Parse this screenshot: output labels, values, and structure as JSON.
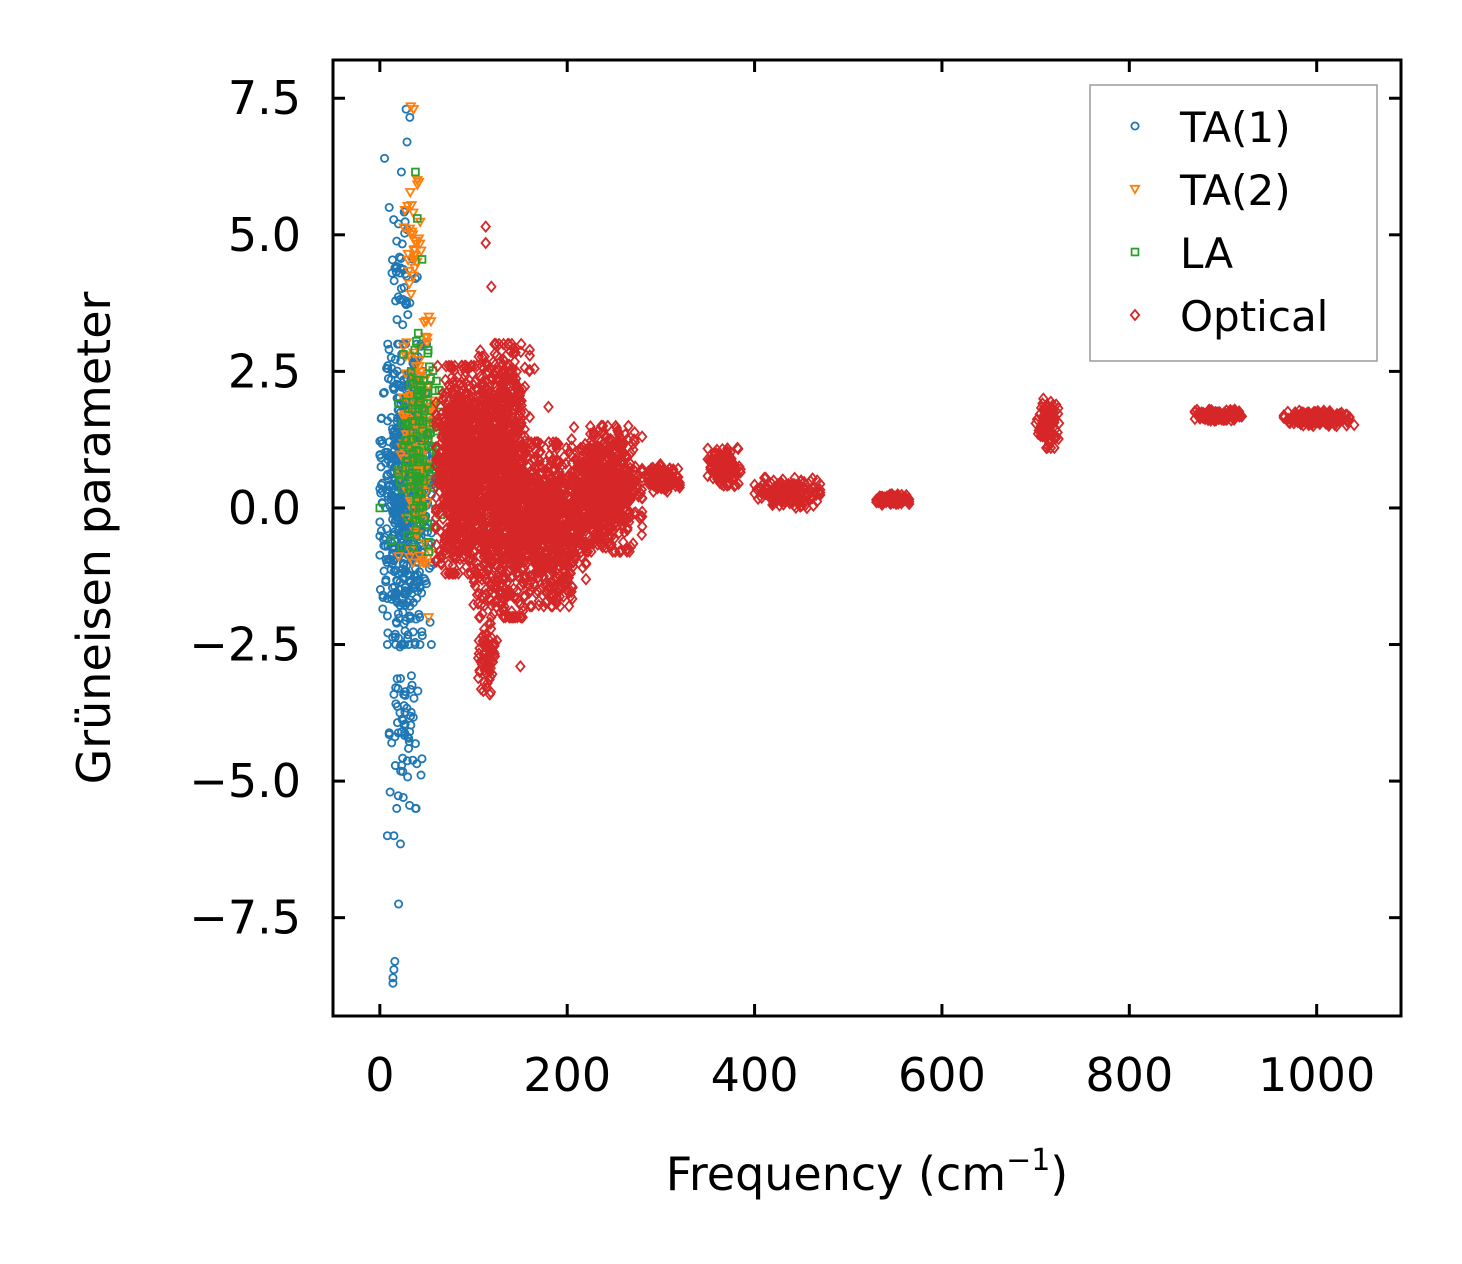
{
  "chart_data": {
    "type": "scatter",
    "title": "",
    "xlabel": "Frequency (cm",
    "xlabel_superscript": "−1",
    "xlabel_suffix": ")",
    "ylabel": "Grüneisen parameter",
    "xlim": [
      -50,
      1090
    ],
    "ylim": [
      -9.3,
      8.2
    ],
    "x_ticks": [
      0,
      200,
      400,
      600,
      800,
      1000
    ],
    "x_tick_labels": [
      "0",
      "200",
      "400",
      "600",
      "800",
      "1000"
    ],
    "y_ticks": [
      7.5,
      5.0,
      2.5,
      0.0,
      -2.5,
      -5.0,
      -7.5
    ],
    "y_tick_labels": [
      "7.5",
      "5.0",
      "2.5",
      "0.0",
      "−2.5",
      "−5.0",
      "−7.5"
    ],
    "grid": false,
    "legend_position": "top-right",
    "series": [
      {
        "name": "TA(1)",
        "marker": "circle",
        "color": "#1f77b4",
        "clusters": [
          {
            "x": [
              0,
              55
            ],
            "y": [
              -2.5,
              3.0
            ],
            "n": 700
          },
          {
            "x": [
              10,
              45
            ],
            "y": [
              -5.5,
              -2.5
            ],
            "n": 60
          },
          {
            "x": [
              10,
              40
            ],
            "y": [
              3.0,
              5.5
            ],
            "n": 40
          }
        ],
        "points": [
          {
            "x": 5,
            "y": 6.4
          },
          {
            "x": 28,
            "y": 7.3
          },
          {
            "x": 32,
            "y": 7.15
          },
          {
            "x": 29,
            "y": 6.7
          },
          {
            "x": 23,
            "y": 6.15
          },
          {
            "x": 27,
            "y": 5.45
          },
          {
            "x": 13,
            "y": 4.3
          },
          {
            "x": 38,
            "y": 4.2
          },
          {
            "x": 8,
            "y": -6.0
          },
          {
            "x": 22,
            "y": -6.15
          },
          {
            "x": 15,
            "y": -6.0
          },
          {
            "x": 20,
            "y": -7.25
          },
          {
            "x": 16,
            "y": -8.3
          },
          {
            "x": 15,
            "y": -8.45
          },
          {
            "x": 14,
            "y": -8.6
          },
          {
            "x": 14,
            "y": -8.7
          },
          {
            "x": 18,
            "y": -5.5
          },
          {
            "x": 25,
            "y": -5.3
          }
        ]
      },
      {
        "name": "TA(2)",
        "marker": "triangle-down",
        "color": "#ff7f0e",
        "clusters": [
          {
            "x": [
              20,
              60
            ],
            "y": [
              -1.0,
              3.5
            ],
            "n": 160
          },
          {
            "x": [
              25,
              45
            ],
            "y": [
              3.5,
              6.0
            ],
            "n": 30
          }
        ],
        "points": [
          {
            "x": 33,
            "y": 7.35
          },
          {
            "x": 36,
            "y": 7.3
          },
          {
            "x": 40,
            "y": 6.0
          },
          {
            "x": 30,
            "y": 4.65
          },
          {
            "x": 52,
            "y": -2.0
          }
        ]
      },
      {
        "name": "LA",
        "marker": "square",
        "color": "#2ca02c",
        "clusters": [
          {
            "x": [
              20,
              65
            ],
            "y": [
              -0.8,
              3.2
            ],
            "n": 140
          }
        ],
        "points": [
          {
            "x": 0,
            "y": 0.0
          },
          {
            "x": 38,
            "y": 6.15
          },
          {
            "x": 40,
            "y": 5.3
          },
          {
            "x": 45,
            "y": 4.55
          },
          {
            "x": 12,
            "y": -0.6
          }
        ]
      },
      {
        "name": "Optical",
        "marker": "diamond",
        "color": "#d62728",
        "clusters": [
          {
            "x": [
              60,
              115
            ],
            "y": [
              -1.2,
              2.6
            ],
            "n": 900
          },
          {
            "x": [
              100,
              160
            ],
            "y": [
              -2.0,
              3.0
            ],
            "n": 1100
          },
          {
            "x": [
              105,
              125
            ],
            "y": [
              -3.5,
              -2.0
            ],
            "n": 80
          },
          {
            "x": [
              140,
              220
            ],
            "y": [
              -1.8,
              1.2
            ],
            "n": 800
          },
          {
            "x": [
              200,
              280
            ],
            "y": [
              -0.8,
              1.5
            ],
            "n": 700
          },
          {
            "x": [
              280,
              320
            ],
            "y": [
              0.3,
              0.8
            ],
            "n": 120
          },
          {
            "x": [
              350,
              385
            ],
            "y": [
              0.4,
              1.1
            ],
            "n": 160
          },
          {
            "x": [
              400,
              470
            ],
            "y": [
              0.0,
              0.55
            ],
            "n": 180
          },
          {
            "x": [
              530,
              565
            ],
            "y": [
              0.05,
              0.25
            ],
            "n": 120
          },
          {
            "x": [
              700,
              725
            ],
            "y": [
              1.1,
              2.0
            ],
            "n": 120
          },
          {
            "x": [
              870,
              920
            ],
            "y": [
              1.6,
              1.8
            ],
            "n": 180
          },
          {
            "x": [
              965,
              1035
            ],
            "y": [
              1.5,
              1.78
            ],
            "n": 240
          }
        ],
        "points": [
          {
            "x": 113,
            "y": 5.15
          },
          {
            "x": 113,
            "y": 4.85
          },
          {
            "x": 119,
            "y": 4.05
          },
          {
            "x": 165,
            "y": 2.55
          },
          {
            "x": 180,
            "y": 1.85
          },
          {
            "x": 150,
            "y": -2.9
          },
          {
            "x": 1040,
            "y": 1.52
          }
        ]
      }
    ]
  }
}
